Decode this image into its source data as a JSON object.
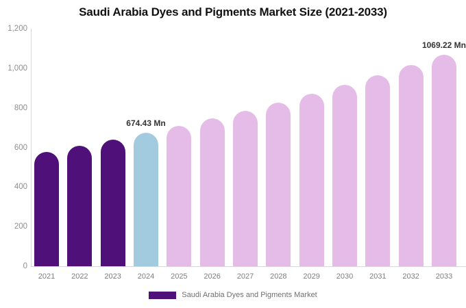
{
  "title": "Saudi Arabia Dyes and Pigments Market Size (2021-2033)",
  "legend": {
    "label": "Saudi Arabia Dyes and Pigments Market",
    "swatch_color": "#4f1179"
  },
  "colors": {
    "historical_bar": "#4f1179",
    "current_year_bar": "#a2cbe0",
    "forecast_bar": "#e5bce8",
    "axis_line": "#d8d8d8",
    "y_tick_label": "#8e8e8e",
    "x_label": "#7d7d7d",
    "value_label": "#333333",
    "title_text": "#111111",
    "legend_text": "#6f6f6f"
  },
  "chart_data": {
    "type": "bar",
    "title": "Saudi Arabia Dyes and Pigments Market Size (2021-2033)",
    "xlabel": "",
    "ylabel": "",
    "unit": "Mn",
    "grid": false,
    "legend_position": "bottom",
    "series_name": "Saudi Arabia Dyes and Pigments Market",
    "categories": [
      "2021",
      "2022",
      "2023",
      "2024",
      "2025",
      "2026",
      "2027",
      "2028",
      "2029",
      "2030",
      "2031",
      "2032",
      "2033"
    ],
    "values": [
      578.4,
      608.8,
      640.8,
      674.43,
      709.9,
      747.2,
      786.4,
      827.7,
      871.2,
      917.0,
      965.1,
      1015.8,
      1069.22
    ],
    "labeled_values": {
      "2024": "674.43 Mn",
      "2033": "1069.22 Mn"
    },
    "bar_colors": [
      "#4f1179",
      "#4f1179",
      "#4f1179",
      "#a2cbe0",
      "#e5bce8",
      "#e5bce8",
      "#e5bce8",
      "#e5bce8",
      "#e5bce8",
      "#e5bce8",
      "#e5bce8",
      "#e5bce8",
      "#e5bce8"
    ],
    "ylim": [
      0,
      1200
    ],
    "y_ticks": [
      0,
      200,
      400,
      600,
      800,
      1000,
      1200
    ],
    "y_tick_labels": [
      "0",
      "200",
      "400",
      "600",
      "800",
      "1,000",
      "1,200"
    ],
    "data_labels": [
      {
        "category": "2024",
        "text": "674.43 Mn"
      },
      {
        "category": "2033",
        "text": "1069.22 Mn"
      }
    ]
  }
}
